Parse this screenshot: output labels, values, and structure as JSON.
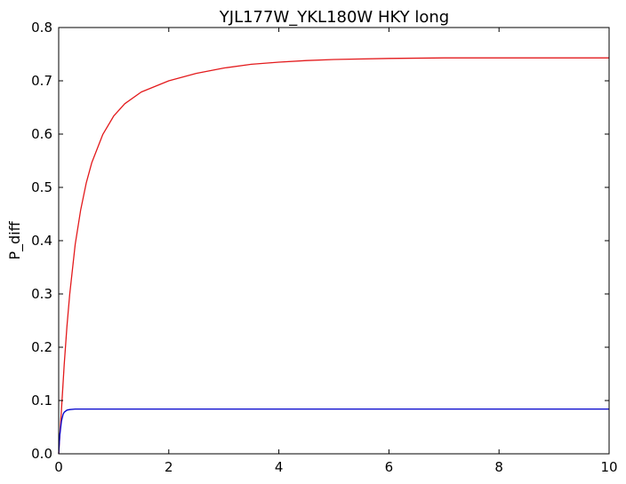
{
  "chart_data": {
    "type": "line",
    "title": "YJL177W_YKL180W HKY long",
    "xlabel": "",
    "ylabel": "P_diff",
    "xlim": [
      0,
      10
    ],
    "ylim": [
      0,
      0.8
    ],
    "xticks": [
      0,
      2,
      4,
      6,
      8,
      10
    ],
    "xtick_labels": [
      "0",
      "2",
      "4",
      "6",
      "8",
      "10"
    ],
    "yticks": [
      0,
      0.1,
      0.2,
      0.3,
      0.4,
      0.5,
      0.6,
      0.7,
      0.8
    ],
    "ytick_labels": [
      "0.0",
      "0.1",
      "0.2",
      "0.3",
      "0.4",
      "0.5",
      "0.6",
      "0.7",
      "0.8"
    ],
    "grid": false,
    "series": [
      {
        "color": "#e31a1c",
        "x": [
          0,
          0.05,
          0.1,
          0.15,
          0.2,
          0.3,
          0.4,
          0.5,
          0.6,
          0.8,
          1.0,
          1.2,
          1.5,
          2.0,
          2.5,
          3.0,
          3.5,
          4.0,
          4.5,
          5.0,
          6.0,
          7.0,
          8.0,
          9.0,
          10.0
        ],
        "values": [
          0.0,
          0.082,
          0.167,
          0.239,
          0.299,
          0.393,
          0.458,
          0.508,
          0.546,
          0.599,
          0.634,
          0.657,
          0.679,
          0.7,
          0.714,
          0.724,
          0.731,
          0.735,
          0.738,
          0.74,
          0.742,
          0.743,
          0.743,
          0.743,
          0.743
        ]
      },
      {
        "color": "#0000cc",
        "x": [
          0,
          0.02,
          0.05,
          0.08,
          0.1,
          0.15,
          0.2,
          0.3,
          0.5,
          1.0,
          2.0,
          4.0,
          6.0,
          8.0,
          10.0
        ],
        "values": [
          0.0,
          0.035,
          0.061,
          0.074,
          0.078,
          0.082,
          0.083,
          0.084,
          0.084,
          0.084,
          0.084,
          0.084,
          0.084,
          0.084,
          0.084
        ]
      }
    ]
  }
}
